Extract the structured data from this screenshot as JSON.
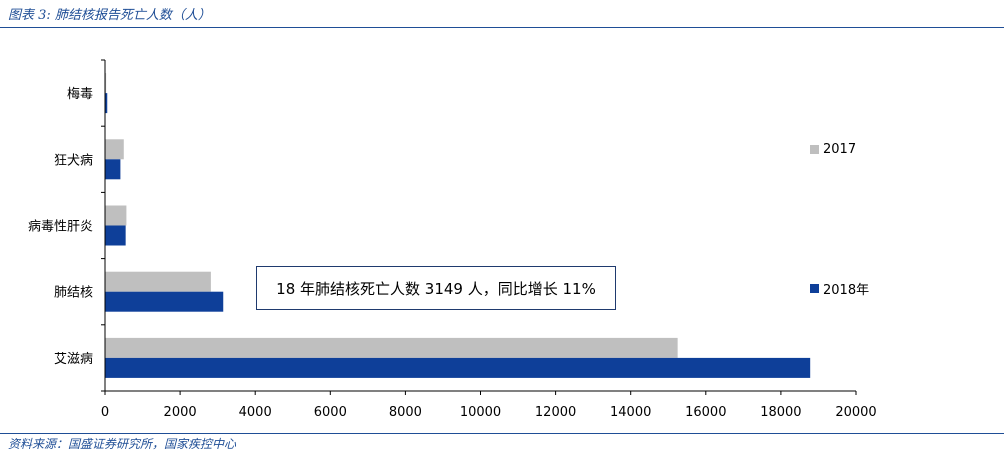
{
  "page": {
    "title": "图表 3: 肺结核报告死亡人数（人）",
    "source": "资料来源：国盛证券研究所，国家疾控中心"
  },
  "colors": {
    "accent": "#1F4E96",
    "series_2017": "#BFBFBF",
    "series_2018": "#0E3F99"
  },
  "chart_data": {
    "type": "bar",
    "orientation": "horizontal",
    "categories": [
      "梅毒",
      "狂犬病",
      "病毒性肝炎",
      "肺结核",
      "艾滋病"
    ],
    "series": [
      {
        "name": "2017",
        "values": [
          30,
          500,
          570,
          2820,
          15250
        ]
      },
      {
        "name": "2018年",
        "values": [
          60,
          410,
          550,
          3149,
          18780
        ]
      }
    ],
    "xlim": [
      0,
      20000
    ],
    "xticks": [
      0,
      2000,
      4000,
      6000,
      8000,
      10000,
      12000,
      14000,
      16000,
      18000,
      20000
    ],
    "legend_position": "right",
    "grid": false,
    "annotation": "18 年肺结核死亡人数 3149 人，同比增长 11%"
  }
}
